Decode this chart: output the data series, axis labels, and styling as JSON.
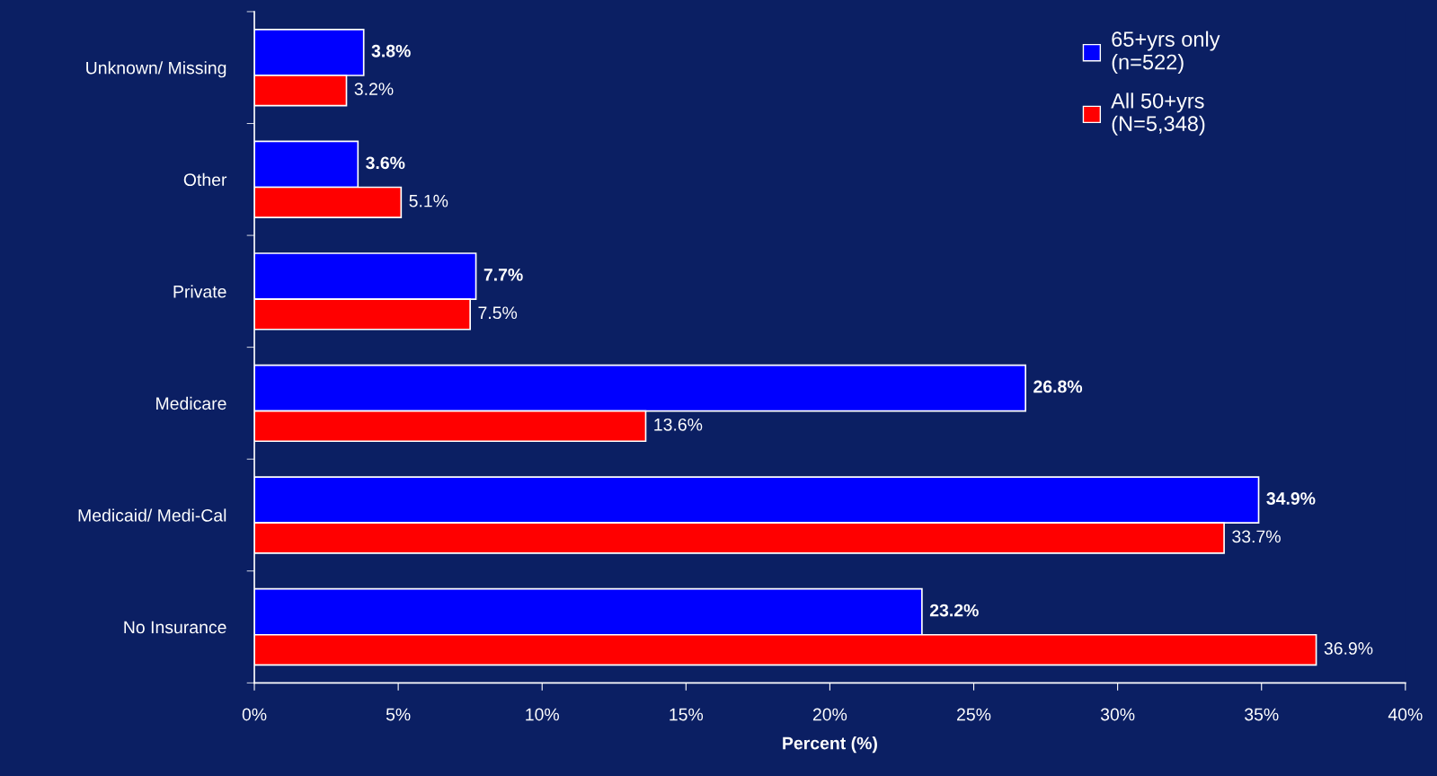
{
  "chart_data": {
    "type": "bar",
    "orientation": "horizontal",
    "categories": [
      "Unknown/ Missing",
      "Other",
      "Private",
      "Medicare",
      "Medicaid/ Medi-Cal",
      "No Insurance"
    ],
    "series": [
      {
        "name": "65+yrs only\n(n=522)",
        "color": "#0000ff",
        "values": [
          3.8,
          3.6,
          7.7,
          26.8,
          34.9,
          23.2
        ],
        "value_labels": [
          "3.8%",
          "3.6%",
          "7.7%",
          "26.8%",
          "34.9%",
          "23.2%"
        ]
      },
      {
        "name": "All 50+yrs\n(N=5,348)",
        "color": "#ff0000",
        "values": [
          3.2,
          5.1,
          7.5,
          13.6,
          33.7,
          36.9
        ],
        "value_labels": [
          "3.2%",
          "5.1%",
          "7.5%",
          "13.6%",
          "33.7%",
          "36.9%"
        ]
      }
    ],
    "xlabel": "Percent (%)",
    "xlim": [
      0,
      40
    ],
    "xticks": [
      {
        "value": 0,
        "label": "0%"
      },
      {
        "value": 5,
        "label": "5%"
      },
      {
        "value": 10,
        "label": "10%"
      },
      {
        "value": 15,
        "label": "15%"
      },
      {
        "value": 20,
        "label": "20%"
      },
      {
        "value": 25,
        "label": "25%"
      },
      {
        "value": 30,
        "label": "30%"
      },
      {
        "value": 35,
        "label": "35%"
      },
      {
        "value": 40,
        "label": "40%"
      }
    ],
    "grid": false,
    "legend": "top right"
  }
}
